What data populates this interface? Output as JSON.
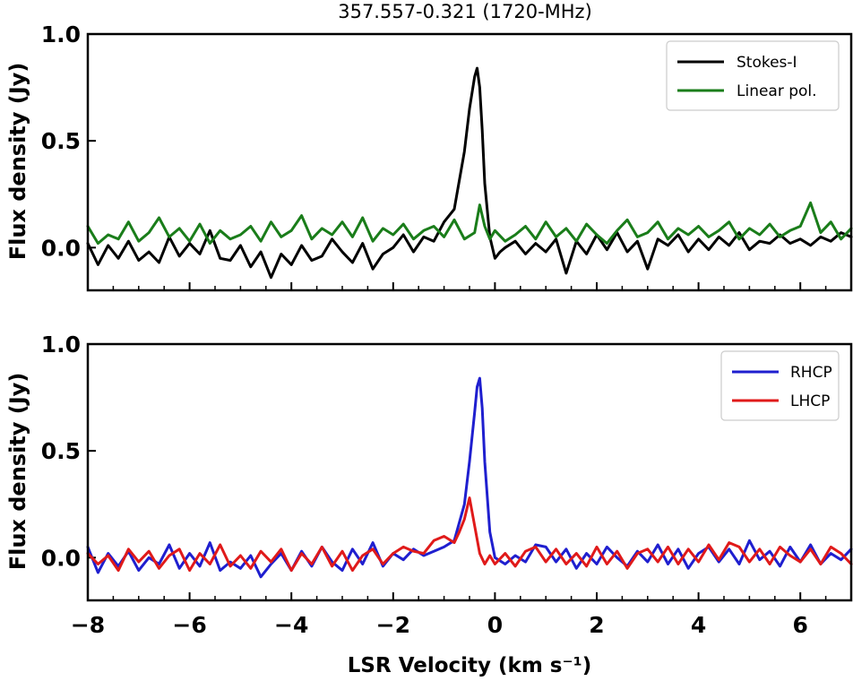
{
  "chart_data": [
    {
      "type": "line",
      "title": "357.557-0.321 (1720-MHz)",
      "xlabel": "",
      "ylabel": "Flux density (Jy)",
      "xlim": [
        -8.0,
        7.0
      ],
      "ylim": [
        -0.2,
        1.0
      ],
      "xticks": [
        -8,
        -6,
        -4,
        -2,
        0,
        2,
        4,
        6
      ],
      "yticks": [
        0.0,
        0.5,
        1.0
      ],
      "ytick_labels": [
        "0.0",
        "0.5",
        "1.0"
      ],
      "xtick_labels_shown": false,
      "legend_position": "upper right",
      "legend": [
        {
          "label": "Stokes-I",
          "color": "#000000"
        },
        {
          "label": "Linear pol.",
          "color": "#1a7d1a"
        }
      ],
      "series": [
        {
          "name": "Stokes-I",
          "color": "#000000",
          "x": [
            -8.0,
            -7.8,
            -7.6,
            -7.4,
            -7.2,
            -7.0,
            -6.8,
            -6.6,
            -6.4,
            -6.2,
            -6.0,
            -5.8,
            -5.6,
            -5.4,
            -5.2,
            -5.0,
            -4.8,
            -4.6,
            -4.4,
            -4.2,
            -4.0,
            -3.8,
            -3.6,
            -3.4,
            -3.2,
            -3.0,
            -2.8,
            -2.6,
            -2.4,
            -2.2,
            -2.0,
            -1.8,
            -1.6,
            -1.4,
            -1.2,
            -1.0,
            -0.8,
            -0.6,
            -0.5,
            -0.4,
            -0.35,
            -0.3,
            -0.25,
            -0.2,
            -0.1,
            0.0,
            0.1,
            0.2,
            0.4,
            0.6,
            0.8,
            1.0,
            1.2,
            1.4,
            1.6,
            1.8,
            2.0,
            2.2,
            2.4,
            2.6,
            2.8,
            3.0,
            3.2,
            3.4,
            3.6,
            3.8,
            4.0,
            4.2,
            4.4,
            4.6,
            4.8,
            5.0,
            5.2,
            5.4,
            5.6,
            5.8,
            6.0,
            6.2,
            6.4,
            6.6,
            6.8,
            7.0
          ],
          "y": [
            0.02,
            -0.08,
            0.01,
            -0.05,
            0.03,
            -0.06,
            -0.02,
            -0.07,
            0.05,
            -0.04,
            0.02,
            -0.03,
            0.08,
            -0.05,
            -0.06,
            0.01,
            -0.09,
            -0.02,
            -0.14,
            -0.03,
            -0.08,
            0.01,
            -0.06,
            -0.04,
            0.04,
            -0.02,
            -0.07,
            0.02,
            -0.1,
            -0.03,
            0.0,
            0.06,
            -0.02,
            0.05,
            0.03,
            0.12,
            0.18,
            0.45,
            0.65,
            0.8,
            0.84,
            0.75,
            0.55,
            0.3,
            0.05,
            -0.05,
            -0.02,
            0.0,
            0.03,
            -0.03,
            0.02,
            -0.02,
            0.04,
            -0.12,
            0.03,
            -0.03,
            0.06,
            -0.01,
            0.07,
            -0.02,
            0.03,
            -0.1,
            0.04,
            0.01,
            0.06,
            -0.02,
            0.04,
            -0.01,
            0.05,
            0.01,
            0.07,
            -0.01,
            0.03,
            0.02,
            0.06,
            0.02,
            0.04,
            0.01,
            0.05,
            0.03,
            0.07,
            0.05
          ]
        },
        {
          "name": "Linear pol.",
          "color": "#1a7d1a",
          "x": [
            -8.0,
            -7.8,
            -7.6,
            -7.4,
            -7.2,
            -7.0,
            -6.8,
            -6.6,
            -6.4,
            -6.2,
            -6.0,
            -5.8,
            -5.6,
            -5.4,
            -5.2,
            -5.0,
            -4.8,
            -4.6,
            -4.4,
            -4.2,
            -4.0,
            -3.8,
            -3.6,
            -3.4,
            -3.2,
            -3.0,
            -2.8,
            -2.6,
            -2.4,
            -2.2,
            -2.0,
            -1.8,
            -1.6,
            -1.4,
            -1.2,
            -1.0,
            -0.8,
            -0.6,
            -0.4,
            -0.3,
            -0.2,
            -0.1,
            0.0,
            0.2,
            0.4,
            0.6,
            0.8,
            1.0,
            1.2,
            1.4,
            1.6,
            1.8,
            2.0,
            2.2,
            2.4,
            2.6,
            2.8,
            3.0,
            3.2,
            3.4,
            3.6,
            3.8,
            4.0,
            4.2,
            4.4,
            4.6,
            4.8,
            5.0,
            5.2,
            5.4,
            5.6,
            5.8,
            6.0,
            6.2,
            6.4,
            6.6,
            6.8,
            7.0
          ],
          "y": [
            0.1,
            0.02,
            0.06,
            0.04,
            0.12,
            0.03,
            0.07,
            0.14,
            0.05,
            0.09,
            0.03,
            0.11,
            0.02,
            0.08,
            0.04,
            0.06,
            0.1,
            0.03,
            0.12,
            0.05,
            0.08,
            0.15,
            0.04,
            0.09,
            0.06,
            0.12,
            0.05,
            0.14,
            0.03,
            0.09,
            0.06,
            0.11,
            0.04,
            0.08,
            0.1,
            0.05,
            0.13,
            0.04,
            0.07,
            0.2,
            0.1,
            0.04,
            0.08,
            0.03,
            0.06,
            0.1,
            0.04,
            0.12,
            0.05,
            0.09,
            0.03,
            0.11,
            0.06,
            0.02,
            0.08,
            0.13,
            0.05,
            0.07,
            0.12,
            0.04,
            0.09,
            0.06,
            0.1,
            0.05,
            0.08,
            0.12,
            0.04,
            0.09,
            0.06,
            0.11,
            0.05,
            0.08,
            0.1,
            0.21,
            0.07,
            0.12,
            0.04,
            0.09
          ]
        }
      ]
    },
    {
      "type": "line",
      "title": "",
      "xlabel": "LSR Velocity (km s⁻¹)",
      "ylabel": "Flux density (Jy)",
      "xlim": [
        -8.0,
        7.0
      ],
      "ylim": [
        -0.2,
        1.0
      ],
      "xticks": [
        -8,
        -6,
        -4,
        -2,
        0,
        2,
        4,
        6
      ],
      "xtick_labels": [
        "−8",
        "−6",
        "−4",
        "−2",
        "0",
        "2",
        "4",
        "6"
      ],
      "yticks": [
        0.0,
        0.5,
        1.0
      ],
      "ytick_labels": [
        "0.0",
        "0.5",
        "1.0"
      ],
      "xtick_labels_shown": true,
      "legend_position": "upper right",
      "legend": [
        {
          "label": "RHCP",
          "color": "#1f1fcf"
        },
        {
          "label": "LHCP",
          "color": "#e01a1a"
        }
      ],
      "series": [
        {
          "name": "RHCP",
          "color": "#1f1fcf",
          "x": [
            -8.0,
            -7.8,
            -7.6,
            -7.4,
            -7.2,
            -7.0,
            -6.8,
            -6.6,
            -6.4,
            -6.2,
            -6.0,
            -5.8,
            -5.6,
            -5.4,
            -5.2,
            -5.0,
            -4.8,
            -4.6,
            -4.4,
            -4.2,
            -4.0,
            -3.8,
            -3.6,
            -3.4,
            -3.2,
            -3.0,
            -2.8,
            -2.6,
            -2.4,
            -2.2,
            -2.0,
            -1.8,
            -1.6,
            -1.4,
            -1.2,
            -1.0,
            -0.8,
            -0.6,
            -0.5,
            -0.4,
            -0.35,
            -0.3,
            -0.25,
            -0.2,
            -0.1,
            0.0,
            0.2,
            0.4,
            0.6,
            0.8,
            1.0,
            1.2,
            1.4,
            1.6,
            1.8,
            2.0,
            2.2,
            2.4,
            2.6,
            2.8,
            3.0,
            3.2,
            3.4,
            3.6,
            3.8,
            4.0,
            4.2,
            4.4,
            4.6,
            4.8,
            5.0,
            5.2,
            5.4,
            5.6,
            5.8,
            6.0,
            6.2,
            6.4,
            6.6,
            6.8,
            7.0
          ],
          "y": [
            0.05,
            -0.07,
            0.02,
            -0.04,
            0.03,
            -0.06,
            0.0,
            -0.03,
            0.06,
            -0.05,
            0.02,
            -0.04,
            0.07,
            -0.06,
            -0.02,
            -0.05,
            0.01,
            -0.09,
            -0.03,
            0.02,
            -0.06,
            0.03,
            -0.04,
            0.05,
            -0.02,
            -0.06,
            0.04,
            -0.03,
            0.07,
            -0.04,
            0.02,
            -0.01,
            0.04,
            0.01,
            0.03,
            0.05,
            0.08,
            0.25,
            0.45,
            0.68,
            0.8,
            0.84,
            0.7,
            0.45,
            0.12,
            0.0,
            -0.03,
            0.01,
            -0.02,
            0.06,
            0.05,
            -0.02,
            0.04,
            -0.05,
            0.02,
            -0.03,
            0.05,
            0.0,
            -0.04,
            0.03,
            -0.02,
            0.06,
            -0.03,
            0.04,
            -0.05,
            0.02,
            0.05,
            -0.02,
            0.04,
            -0.03,
            0.08,
            -0.01,
            0.03,
            -0.04,
            0.05,
            -0.02,
            0.06,
            -0.03,
            0.02,
            -0.01,
            0.04
          ]
        },
        {
          "name": "LHCP",
          "color": "#e01a1a",
          "x": [
            -8.0,
            -7.8,
            -7.6,
            -7.4,
            -7.2,
            -7.0,
            -6.8,
            -6.6,
            -6.4,
            -6.2,
            -6.0,
            -5.8,
            -5.6,
            -5.4,
            -5.2,
            -5.0,
            -4.8,
            -4.6,
            -4.4,
            -4.2,
            -4.0,
            -3.8,
            -3.6,
            -3.4,
            -3.2,
            -3.0,
            -2.8,
            -2.6,
            -2.4,
            -2.2,
            -2.0,
            -1.8,
            -1.6,
            -1.4,
            -1.2,
            -1.0,
            -0.8,
            -0.7,
            -0.6,
            -0.5,
            -0.4,
            -0.3,
            -0.2,
            -0.1,
            0.0,
            0.2,
            0.4,
            0.6,
            0.8,
            1.0,
            1.2,
            1.4,
            1.6,
            1.8,
            2.0,
            2.2,
            2.4,
            2.6,
            2.8,
            3.0,
            3.2,
            3.4,
            3.6,
            3.8,
            4.0,
            4.2,
            4.4,
            4.6,
            4.8,
            5.0,
            5.2,
            5.4,
            5.6,
            5.8,
            6.0,
            6.2,
            6.4,
            6.6,
            6.8,
            7.0
          ],
          "y": [
            0.02,
            -0.03,
            0.01,
            -0.06,
            0.04,
            -0.02,
            0.03,
            -0.05,
            0.01,
            0.04,
            -0.06,
            0.02,
            -0.03,
            0.06,
            -0.04,
            0.01,
            -0.05,
            0.03,
            -0.02,
            0.04,
            -0.06,
            0.02,
            -0.03,
            0.05,
            -0.04,
            0.03,
            -0.06,
            0.01,
            0.04,
            -0.03,
            0.02,
            0.05,
            0.03,
            0.02,
            0.08,
            0.1,
            0.07,
            0.12,
            0.18,
            0.28,
            0.15,
            0.02,
            -0.03,
            0.01,
            -0.03,
            0.02,
            -0.04,
            0.03,
            0.05,
            -0.02,
            0.04,
            -0.03,
            0.02,
            -0.04,
            0.05,
            -0.03,
            0.03,
            -0.05,
            0.02,
            0.04,
            -0.02,
            0.05,
            -0.03,
            0.04,
            -0.02,
            0.06,
            -0.01,
            0.07,
            0.05,
            -0.02,
            0.04,
            -0.03,
            0.05,
            0.01,
            -0.02,
            0.04,
            -0.03,
            0.05,
            0.02,
            -0.03
          ]
        }
      ]
    }
  ]
}
